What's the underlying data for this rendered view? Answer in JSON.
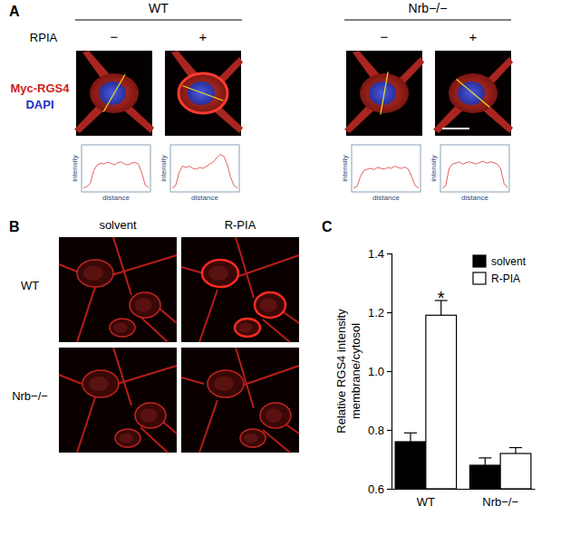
{
  "panel_labels": [
    "A",
    "B",
    "C"
  ],
  "panel_a": {
    "groups": [
      "WT",
      "Nrb−/−"
    ],
    "row_label": "RPIA",
    "conditions": [
      "−",
      "+",
      "−",
      "+"
    ],
    "stain_labels": [
      "Myc-RGS4",
      "DAPI"
    ],
    "profiles": [
      {
        "type": "line",
        "x_label": "distance",
        "y_label": "intensity",
        "color": "#e06060",
        "tick_labels": false,
        "xlim": [
          0,
          19
        ],
        "ylim": [
          0,
          100
        ],
        "x": [
          0,
          1,
          2,
          3,
          4,
          5,
          6,
          7,
          8,
          9,
          10,
          11,
          12,
          13,
          14,
          15,
          16,
          17,
          18,
          19
        ],
        "values": [
          5,
          8,
          15,
          45,
          58,
          62,
          60,
          64,
          62,
          58,
          63,
          65,
          60,
          58,
          62,
          64,
          60,
          40,
          12,
          6
        ]
      },
      {
        "type": "line",
        "x_label": "distance",
        "y_label": "intensity",
        "color": "#e06060",
        "tick_labels": false,
        "xlim": [
          0,
          19
        ],
        "ylim": [
          0,
          100
        ],
        "x": [
          0,
          1,
          2,
          3,
          4,
          5,
          6,
          7,
          8,
          9,
          10,
          11,
          12,
          13,
          14,
          15,
          16,
          17,
          18,
          19
        ],
        "values": [
          5,
          10,
          40,
          55,
          52,
          55,
          50,
          48,
          52,
          50,
          55,
          60,
          65,
          75,
          82,
          78,
          60,
          30,
          10,
          5
        ]
      },
      {
        "type": "line",
        "x_label": "distance",
        "y_label": "intensity",
        "color": "#e06060",
        "tick_labels": false,
        "xlim": [
          0,
          19
        ],
        "ylim": [
          0,
          100
        ],
        "x": [
          0,
          1,
          2,
          3,
          4,
          5,
          6,
          7,
          8,
          9,
          10,
          11,
          12,
          13,
          14,
          15,
          16,
          17,
          18,
          19
        ],
        "values": [
          5,
          8,
          30,
          45,
          48,
          50,
          47,
          52,
          50,
          48,
          52,
          50,
          55,
          52,
          50,
          53,
          48,
          30,
          10,
          5
        ]
      },
      {
        "type": "line",
        "x_label": "distance",
        "y_label": "intensity",
        "color": "#e06060",
        "tick_labels": false,
        "xlim": [
          0,
          19
        ],
        "ylim": [
          0,
          100
        ],
        "x": [
          0,
          1,
          2,
          3,
          4,
          5,
          6,
          7,
          8,
          9,
          10,
          11,
          12,
          13,
          14,
          15,
          16,
          17,
          18,
          19
        ],
        "values": [
          5,
          10,
          50,
          60,
          62,
          65,
          60,
          63,
          65,
          62,
          60,
          64,
          66,
          62,
          65,
          63,
          60,
          50,
          15,
          6
        ]
      }
    ]
  },
  "panel_b": {
    "columns": [
      "solvent",
      "R-PIA"
    ],
    "rows": [
      "WT",
      "Nrb−/−"
    ]
  },
  "chart_data": {
    "type": "bar",
    "y_label": [
      "Relative RGS4 intensity",
      "membrane/cytosol"
    ],
    "categories": [
      "WT",
      "Nrb−/−"
    ],
    "series": [
      {
        "name": "solvent",
        "color": "#000000",
        "values": [
          0.76,
          0.68
        ],
        "errors": [
          0.03,
          0.025
        ]
      },
      {
        "name": "R-PIA",
        "color": "#ffffff",
        "values": [
          1.19,
          0.72
        ],
        "errors": [
          0.05,
          0.02
        ]
      }
    ],
    "ylim": [
      0.6,
      1.4
    ],
    "yticks": [
      0.6,
      0.8,
      {
        "value": 1.0,
        "label": "1.0"
      },
      1.2,
      1.4
    ],
    "legend": "top-right",
    "annotations": [
      {
        "text": "*",
        "x": "WT",
        "series": "R-PIA",
        "y": 1.27
      }
    ]
  }
}
